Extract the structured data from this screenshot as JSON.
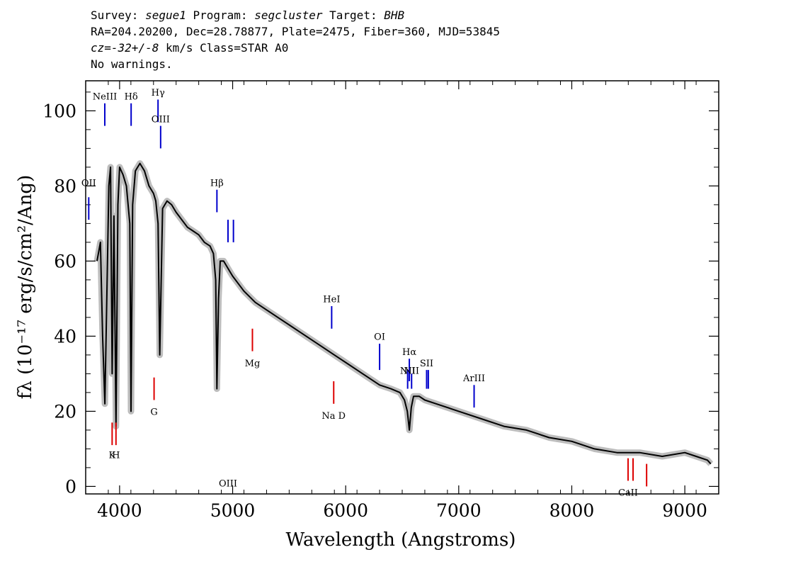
{
  "header": {
    "line1": {
      "survey_label": "Survey: ",
      "survey": "segue1",
      "program_label": " Program: ",
      "program": "segcluster",
      "target_label": " Target: ",
      "target": "BHB"
    },
    "line2": "RA=204.20200, Dec=28.78877, Plate=2475, Fiber=360, MJD=53845",
    "line3": {
      "cz_label": "cz",
      "cz_text": "=",
      "cz_value": "-32+/-8",
      "cz_rest": " km/s Class=STAR A0"
    },
    "line4": "No warnings."
  },
  "chart_data": {
    "type": "line",
    "xlabel": "Wavelength (Angstroms)",
    "ylabel": "fλ (10⁻¹⁷ erg/s/cm²/Ang)",
    "xlim": [
      3700,
      9300
    ],
    "ylim": [
      -2,
      108
    ],
    "x_ticks": [
      4000,
      5000,
      6000,
      7000,
      8000,
      9000
    ],
    "y_ticks": [
      0,
      20,
      40,
      60,
      80,
      100
    ],
    "colors": {
      "spectrum": "#000000",
      "error_band": "#bdbdbd",
      "emission": "#0000cc",
      "absorption": "#dd0000"
    },
    "series": [
      {
        "x": [
          3800,
          3830,
          3850,
          3870,
          3890,
          3905,
          3920,
          3934,
          3950,
          3968,
          3985,
          4000,
          4030,
          4060,
          4090,
          4101,
          4115,
          4140,
          4180,
          4220,
          4260,
          4300,
          4320,
          4340,
          4355,
          4380,
          4420,
          4460,
          4500,
          4550,
          4600,
          4650,
          4700,
          4750,
          4800,
          4830,
          4850,
          4861,
          4875,
          4890,
          4920,
          4960,
          5000,
          5100,
          5200,
          5300,
          5400,
          5500,
          5600,
          5700,
          5800,
          5900,
          6000,
          6100,
          6200,
          6300,
          6400,
          6480,
          6520,
          6545,
          6563,
          6580,
          6600,
          6650,
          6700,
          6800,
          7000,
          7200,
          7400,
          7600,
          7800,
          8000,
          8200,
          8400,
          8600,
          8800,
          9000,
          9100,
          9200,
          9230
        ],
        "values": [
          60,
          65,
          40,
          22,
          55,
          80,
          85,
          30,
          72,
          16,
          75,
          85,
          83,
          80,
          70,
          20,
          75,
          84,
          86,
          84,
          80,
          78,
          76,
          70,
          35,
          74,
          76,
          75,
          73,
          71,
          69,
          68,
          67,
          65,
          64,
          62,
          55,
          26,
          50,
          60,
          60,
          58,
          56,
          52,
          49,
          47,
          45,
          43,
          41,
          39,
          37,
          35,
          33,
          31,
          29,
          27,
          26,
          25,
          23,
          20,
          15,
          21,
          24,
          24,
          23,
          22,
          20,
          18,
          16,
          15,
          13,
          12,
          10,
          9,
          9,
          8,
          9,
          8,
          7,
          6
        ]
      }
    ],
    "emission_lines": [
      {
        "label": "OII",
        "x": 3727,
        "y_low": 71,
        "y_high": 77,
        "label_y": 80
      },
      {
        "label": "NeIII",
        "x": 3869,
        "y_low": 96,
        "y_high": 102,
        "label_y": 103
      },
      {
        "label": "Hδ",
        "x": 4102,
        "y_low": 96,
        "y_high": 102,
        "label_y": 103
      },
      {
        "label": "Hγ",
        "x": 4340,
        "y_low": 97,
        "y_high": 103,
        "label_y": 104
      },
      {
        "label": "OIII",
        "x": 4363,
        "y_low": 90,
        "y_high": 96,
        "label_y": 97
      },
      {
        "label": "Hβ",
        "x": 4861,
        "y_low": 73,
        "y_high": 79,
        "label_y": 80
      },
      {
        "label": "OIII",
        "x": 4959,
        "y_low": 65,
        "y_high": 71,
        "label_y": 0
      },
      {
        "label": "",
        "x": 5007,
        "y_low": 65,
        "y_high": 71,
        "label_y": 72
      },
      {
        "label": "HeI",
        "x": 5876,
        "y_low": 42,
        "y_high": 48,
        "label_y": 49
      },
      {
        "label": "OI",
        "x": 6300,
        "y_low": 31,
        "y_high": 38,
        "label_y": 39
      },
      {
        "label": "NII",
        "x": 6548,
        "y_low": 26,
        "y_high": 31,
        "label_y": 30
      },
      {
        "label": "Hα",
        "x": 6563,
        "y_low": 28,
        "y_high": 34,
        "label_y": 35
      },
      {
        "label": "NII",
        "x": 6583,
        "y_low": 26,
        "y_high": 30,
        "label_y": 30
      },
      {
        "label": "SII",
        "x": 6716,
        "y_low": 26,
        "y_high": 31,
        "label_y": 32
      },
      {
        "label": "",
        "x": 6731,
        "y_low": 26,
        "y_high": 31,
        "label_y": 0
      },
      {
        "label": "ArIII",
        "x": 7136,
        "y_low": 21,
        "y_high": 27,
        "label_y": 28
      }
    ],
    "absorption_lines": [
      {
        "label": "K",
        "x": 3934,
        "y_low": 11,
        "y_high": 17,
        "label_y": 7.5
      },
      {
        "label": "H",
        "x": 3968,
        "y_low": 11,
        "y_high": 17,
        "label_y": 7.5
      },
      {
        "label": "G",
        "x": 4305,
        "y_low": 23,
        "y_high": 29,
        "label_y": 19
      },
      {
        "label": "Mg",
        "x": 5175,
        "y_low": 36,
        "y_high": 42,
        "label_y": 32
      },
      {
        "label": "Na D",
        "x": 5894,
        "y_low": 22,
        "y_high": 28,
        "label_y": 18
      },
      {
        "label": "CaII",
        "x": 8498,
        "y_low": 1.5,
        "y_high": 7.5,
        "label_y": -2.5
      },
      {
        "label": "",
        "x": 8542,
        "y_low": 1.5,
        "y_high": 7.5,
        "label_y": 0
      },
      {
        "label": "",
        "x": 8662,
        "y_low": 0,
        "y_high": 6,
        "label_y": 0
      }
    ]
  }
}
